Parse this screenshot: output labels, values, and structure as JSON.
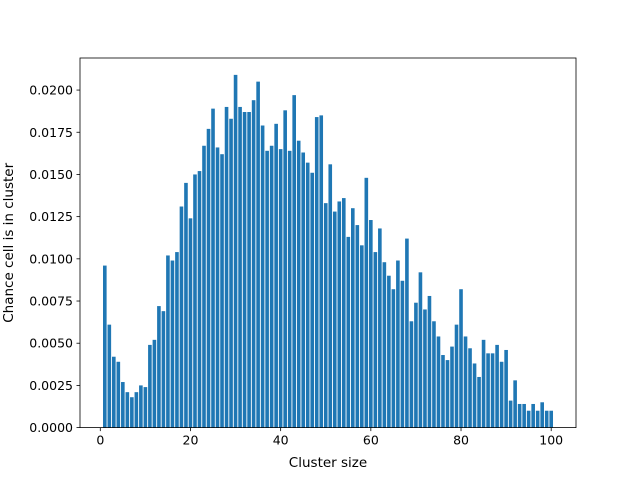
{
  "chart_data": {
    "type": "bar",
    "title": "",
    "xlabel": "Cluster size",
    "ylabel": "Chance cell is in cluster",
    "xlim": [
      -4.5,
      105.5
    ],
    "ylim": [
      0,
      0.0219
    ],
    "x_ticks": [
      0,
      20,
      40,
      60,
      80,
      100
    ],
    "x_tick_labels": [
      "0",
      "20",
      "40",
      "60",
      "80",
      "100"
    ],
    "y_ticks": [
      0,
      0.0025,
      0.005,
      0.0075,
      0.01,
      0.0125,
      0.015,
      0.0175,
      0.02
    ],
    "y_tick_labels": [
      "0.0000",
      "0.0025",
      "0.0050",
      "0.0075",
      "0.0100",
      "0.0125",
      "0.0150",
      "0.0175",
      "0.0200"
    ],
    "bar_color": "#1f77b4",
    "grid": false,
    "legend": "none",
    "x": [
      1,
      2,
      3,
      4,
      5,
      6,
      7,
      8,
      9,
      10,
      11,
      12,
      13,
      14,
      15,
      16,
      17,
      18,
      19,
      20,
      21,
      22,
      23,
      24,
      25,
      26,
      27,
      28,
      29,
      30,
      31,
      32,
      33,
      34,
      35,
      36,
      37,
      38,
      39,
      40,
      41,
      42,
      43,
      44,
      45,
      46,
      47,
      48,
      49,
      50,
      51,
      52,
      53,
      54,
      55,
      56,
      57,
      58,
      59,
      60,
      61,
      62,
      63,
      64,
      65,
      66,
      67,
      68,
      69,
      70,
      71,
      72,
      73,
      74,
      75,
      76,
      77,
      78,
      79,
      80,
      81,
      82,
      83,
      84,
      85,
      86,
      87,
      88,
      89,
      90,
      91,
      92,
      93,
      94,
      95,
      96,
      97,
      98,
      99,
      100
    ],
    "values": [
      0.0096,
      0.0061,
      0.0042,
      0.0039,
      0.0027,
      0.0021,
      0.0018,
      0.0021,
      0.0025,
      0.0024,
      0.0049,
      0.0052,
      0.0072,
      0.0069,
      0.0102,
      0.0099,
      0.0104,
      0.0131,
      0.0145,
      0.0124,
      0.015,
      0.0152,
      0.0167,
      0.0177,
      0.0189,
      0.0166,
      0.0162,
      0.019,
      0.0183,
      0.0209,
      0.019,
      0.0187,
      0.0187,
      0.0194,
      0.0205,
      0.0179,
      0.0164,
      0.0167,
      0.018,
      0.0165,
      0.0188,
      0.0164,
      0.0197,
      0.017,
      0.0163,
      0.0157,
      0.0151,
      0.0184,
      0.0185,
      0.0133,
      0.0156,
      0.0128,
      0.0134,
      0.0136,
      0.0113,
      0.013,
      0.012,
      0.0108,
      0.0148,
      0.0123,
      0.0104,
      0.0118,
      0.0098,
      0.009,
      0.0082,
      0.0099,
      0.0087,
      0.0112,
      0.0063,
      0.0074,
      0.0092,
      0.007,
      0.0078,
      0.0063,
      0.0054,
      0.0043,
      0.004,
      0.0048,
      0.0061,
      0.0082,
      0.0054,
      0.0047,
      0.0038,
      0.003,
      0.0052,
      0.0044,
      0.0044,
      0.0049,
      0.0039,
      0.0046,
      0.0016,
      0.0028,
      0.0014,
      0.0014,
      0.001,
      0.0014,
      0.001,
      0.0015,
      0.001,
      0.001
    ]
  }
}
